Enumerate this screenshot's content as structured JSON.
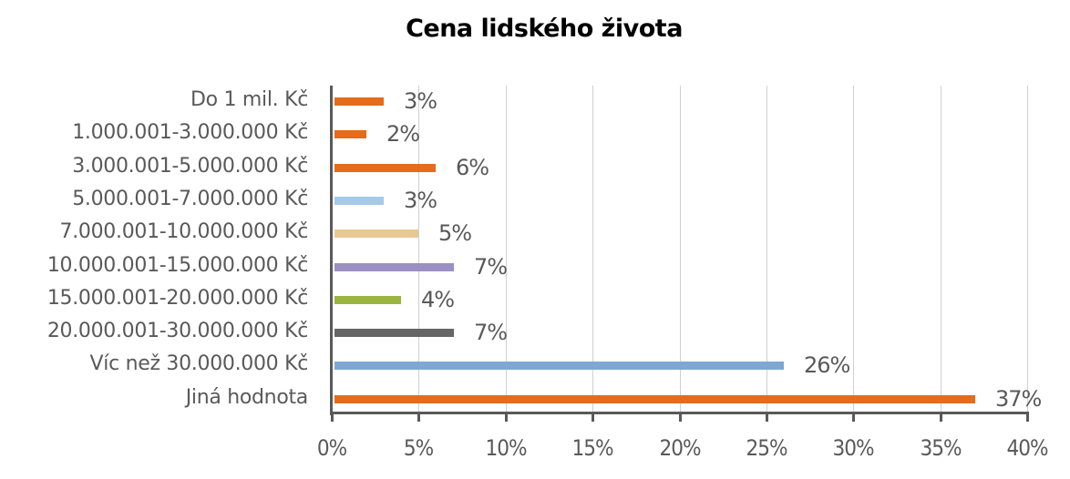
{
  "chart_data": {
    "type": "bar",
    "orientation": "horizontal",
    "title": "Cena lidského života",
    "xlabel": "",
    "ylabel": "",
    "xlim": [
      0,
      40
    ],
    "grid": true,
    "legend": "none",
    "x_tick_labels": [
      "0%",
      "5%",
      "10%",
      "15%",
      "20%",
      "25%",
      "30%",
      "35%",
      "40%"
    ],
    "categories": [
      "Do 1 mil. Kč",
      "1.000.001-3.000.000 Kč",
      "3.000.001-5.000.000 Kč",
      "5.000.001-7.000.000 Kč",
      "7.000.001-10.000.000 Kč",
      "10.000.001-15.000.000 Kč",
      "15.000.001-20.000.000 Kč",
      "20.000.001-30.000.000 Kč",
      "Víc než 30.000.000 Kč",
      "Jiná hodnota"
    ],
    "values": [
      3,
      2,
      6,
      3,
      5,
      7,
      4,
      7,
      26,
      37
    ],
    "value_labels": [
      "3%",
      "2%",
      "6%",
      "3%",
      "5%",
      "7%",
      "4%",
      "7%",
      "26%",
      "37%"
    ],
    "colors": [
      "#e46c1a",
      "#e46c1a",
      "#e46c1a",
      "#a6c9e6",
      "#e8c893",
      "#9b90c3",
      "#9bb440",
      "#666666",
      "#7ea8d2",
      "#e46c1a"
    ]
  }
}
